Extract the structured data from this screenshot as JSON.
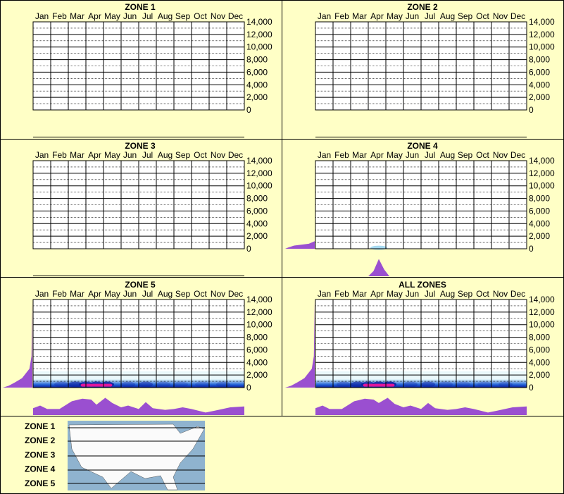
{
  "months": [
    "Jan",
    "Feb",
    "Mar",
    "Apr",
    "May",
    "Jun",
    "Jul",
    "Aug",
    "Sep",
    "Oct",
    "Nov",
    "Dec"
  ],
  "y_ticks": [
    "14,000",
    "12,000",
    "10,000",
    "8,000",
    "6,000",
    "4,000",
    "2,000",
    "0"
  ],
  "colors": {
    "background": "#ffffc6",
    "density": "#9a4fd0",
    "heat_low": "#d9f2f7",
    "heat_mid": "#1f5fd6",
    "heat_high": "#0a1a9a",
    "heat_peak": "#e0169a"
  },
  "chart_data": [
    {
      "type": "heatmap",
      "title": "ZONE 1",
      "ylim": [
        0,
        14000
      ],
      "elevation_density": [],
      "monthly_density": []
    },
    {
      "type": "heatmap",
      "title": "ZONE 2",
      "ylim": [
        0,
        14000
      ],
      "elevation_density": [],
      "monthly_density": []
    },
    {
      "type": "heatmap",
      "title": "ZONE 3",
      "ylim": [
        0,
        14000
      ],
      "elevation_density": [],
      "monthly_density": []
    },
    {
      "type": "heatmap",
      "title": "ZONE 4",
      "ylim": [
        0,
        14000
      ],
      "elevation_density": [
        [
          0,
          1.0
        ],
        [
          200,
          0.9
        ],
        [
          500,
          0.7
        ],
        [
          800,
          0.2
        ],
        [
          1200,
          0
        ]
      ],
      "monthly_density": [
        [
          3.0,
          0
        ],
        [
          3.3,
          0.3
        ],
        [
          3.6,
          1.0
        ],
        [
          3.9,
          0.4
        ],
        [
          4.2,
          0
        ]
      ]
    },
    {
      "type": "heatmap",
      "title": "ZONE 5",
      "ylim": [
        0,
        14000
      ],
      "elevation_density": [
        [
          0,
          1.0
        ],
        [
          300,
          0.8
        ],
        [
          800,
          0.6
        ],
        [
          1500,
          0.35
        ],
        [
          3000,
          0.1
        ],
        [
          5000,
          0.03
        ],
        [
          14000,
          0
        ]
      ],
      "monthly_density": [
        [
          0,
          0.4
        ],
        [
          0.4,
          0.55
        ],
        [
          0.8,
          0.35
        ],
        [
          1.5,
          0.35
        ],
        [
          2.2,
          0.8
        ],
        [
          2.8,
          0.95
        ],
        [
          3.3,
          0.9
        ],
        [
          3.6,
          0.6
        ],
        [
          4.1,
          1.0
        ],
        [
          4.5,
          0.7
        ],
        [
          5.0,
          0.45
        ],
        [
          5.4,
          0.55
        ],
        [
          6.0,
          0.35
        ],
        [
          6.4,
          0.75
        ],
        [
          6.8,
          0.4
        ],
        [
          7.5,
          0.3
        ],
        [
          8.0,
          0.35
        ],
        [
          8.5,
          0.45
        ],
        [
          9.0,
          0.35
        ],
        [
          9.8,
          0.15
        ],
        [
          10.3,
          0.25
        ],
        [
          11.2,
          0.45
        ],
        [
          12,
          0.5
        ]
      ],
      "heat_cells": [
        [
          1.6,
          0.3
        ],
        [
          2.4,
          0.6
        ],
        [
          3.0,
          0.7
        ],
        [
          3.6,
          0.75
        ],
        [
          4.2,
          0.8
        ],
        [
          5.4,
          0.3
        ],
        [
          6.4,
          0.45
        ],
        [
          7.4,
          0.25
        ],
        [
          8.4,
          0.2
        ],
        [
          9.6,
          0.2
        ],
        [
          10.8,
          0.25
        ]
      ]
    },
    {
      "type": "heatmap",
      "title": "ALL ZONES",
      "ylim": [
        0,
        14000
      ],
      "elevation_density": [
        [
          0,
          1.0
        ],
        [
          300,
          0.8
        ],
        [
          800,
          0.6
        ],
        [
          1500,
          0.35
        ],
        [
          3000,
          0.1
        ],
        [
          5000,
          0.03
        ],
        [
          14000,
          0
        ]
      ],
      "monthly_density": [
        [
          0,
          0.4
        ],
        [
          0.4,
          0.55
        ],
        [
          0.8,
          0.35
        ],
        [
          1.5,
          0.35
        ],
        [
          2.2,
          0.8
        ],
        [
          2.8,
          0.95
        ],
        [
          3.3,
          0.9
        ],
        [
          3.6,
          0.7
        ],
        [
          4.1,
          1.0
        ],
        [
          4.5,
          0.65
        ],
        [
          5.0,
          0.45
        ],
        [
          5.4,
          0.55
        ],
        [
          6.0,
          0.35
        ],
        [
          6.4,
          0.7
        ],
        [
          6.8,
          0.4
        ],
        [
          7.5,
          0.3
        ],
        [
          8.0,
          0.35
        ],
        [
          8.5,
          0.45
        ],
        [
          9.0,
          0.35
        ],
        [
          9.8,
          0.15
        ],
        [
          10.3,
          0.25
        ],
        [
          11.2,
          0.45
        ],
        [
          12,
          0.5
        ]
      ],
      "heat_cells": [
        [
          1.6,
          0.3
        ],
        [
          2.4,
          0.6
        ],
        [
          3.0,
          0.7
        ],
        [
          3.6,
          0.8
        ],
        [
          4.2,
          0.85
        ],
        [
          5.4,
          0.3
        ],
        [
          6.4,
          0.45
        ],
        [
          7.4,
          0.25
        ],
        [
          8.4,
          0.2
        ],
        [
          9.6,
          0.2
        ],
        [
          10.8,
          0.25
        ]
      ]
    }
  ],
  "legend": {
    "zones": [
      "ZONE 1",
      "ZONE 2",
      "ZONE 3",
      "ZONE 4",
      "ZONE 5"
    ]
  }
}
